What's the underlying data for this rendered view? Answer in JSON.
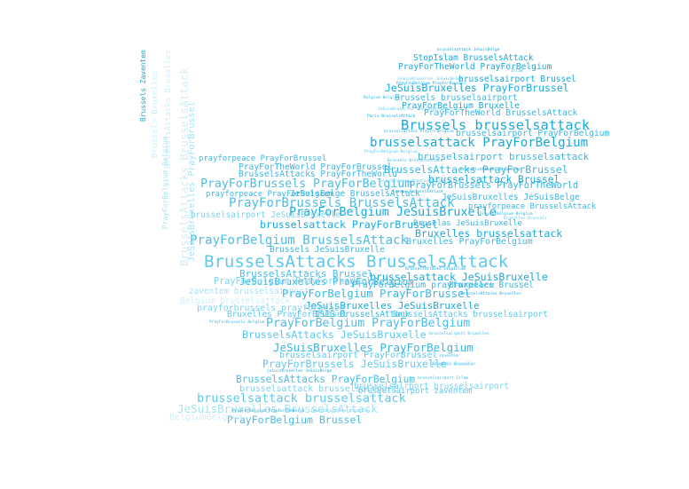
{
  "words": [
    {
      "text": "BrusselsAttacks BrusselsAttack",
      "weight": 1.0,
      "color": "#5bc8ee"
    },
    {
      "text": "Brussels brusselsattack",
      "weight": 0.72,
      "color": "#1aa9da"
    },
    {
      "text": "brusselsattack PrayForBelgium",
      "weight": 0.62,
      "color": "#1aa9da"
    },
    {
      "text": "PrayForBrussels BrusselsAttack",
      "weight": 0.62,
      "color": "#4dbde6"
    },
    {
      "text": "PrayForBelgium BrusselsAttack",
      "weight": 0.62,
      "color": "#4dbde6"
    },
    {
      "text": "PrayForBelgium JeSuisBruxelle",
      "weight": 0.57,
      "color": "#1aa9da"
    },
    {
      "text": "PrayForBrussels PrayForBelgium",
      "weight": 0.55,
      "color": "#4dbde6"
    },
    {
      "text": "brusselsattack brusselsattack",
      "weight": 0.58,
      "color": "#5bc8ee"
    },
    {
      "text": "PrayForBelgium PrayForBelgium",
      "weight": 0.55,
      "color": "#4dbde6"
    },
    {
      "text": "JeSuisBruxelles PrayForBelgium",
      "weight": 0.5,
      "color": "#3bb6e2"
    },
    {
      "text": "JeSuisBruxelles BrusselsAttack",
      "weight": 0.5,
      "color": "#a8e2f5"
    },
    {
      "text": "PrayForBelgium PrayForBrussel",
      "weight": 0.48,
      "color": "#3bb6e2"
    },
    {
      "text": "JeSuisBruxelles PrayForBrussel",
      "weight": 0.42,
      "color": "#1aa9da"
    },
    {
      "text": "BrusselsAttacks PrayForBrussel",
      "weight": 0.42,
      "color": "#3bb6e2"
    },
    {
      "text": "Bruxelles brusselsattack",
      "weight": 0.42,
      "color": "#1aa9da"
    },
    {
      "text": "brusselsattack PrayForBrussel",
      "weight": 0.42,
      "color": "#1aa9da"
    },
    {
      "text": "brusselsattack JeSuisBruxelle",
      "weight": 0.42,
      "color": "#1aa9da"
    },
    {
      "text": "BrusselsAttacks JeSuisBruxelle",
      "weight": 0.42,
      "color": "#5bc8ee"
    },
    {
      "text": "PrayForBrussels JeSuisBruxelle",
      "weight": 0.42,
      "color": "#5bc8ee"
    },
    {
      "text": "BrusselsAttacks PrayForBelgium",
      "weight": 0.4,
      "color": "#4dbde6"
    },
    {
      "text": "PrayForBelgium Brussel",
      "weight": 0.42,
      "color": "#4dbde6"
    },
    {
      "text": "BrusselsAttacks Brussel",
      "weight": 0.38,
      "color": "#4dbde6"
    },
    {
      "text": "brusselsattack Brussel",
      "weight": 0.4,
      "color": "#1aa9da"
    },
    {
      "text": "JeSuisBruxelles JeSuisBruxelle",
      "weight": 0.38,
      "color": "#1aa9da"
    },
    {
      "text": "JeSuisBruxelles PrayForBelgium",
      "weight": 0.38,
      "color": "#3bb6e2"
    },
    {
      "text": "brusselsairport brusselsattack",
      "weight": 0.36,
      "color": "#3bb6e2"
    },
    {
      "text": "PrayForBrussels PrayForTheWorld",
      "weight": 0.32,
      "color": "#3bb6e2"
    },
    {
      "text": "PrayForBelgium PrayForTheWorld",
      "weight": 0.32,
      "color": "#7dd3f0"
    },
    {
      "text": "Bruxelles PrayForBelgium",
      "weight": 0.3,
      "color": "#3bb6e2"
    },
    {
      "text": "brusselsairport PrayForBrussel",
      "weight": 0.3,
      "color": "#5bc8ee"
    },
    {
      "text": "brusselsattack brusselsairport",
      "weight": 0.3,
      "color": "#7dd3f0"
    },
    {
      "text": "PrayForBelgium prayforpeace",
      "weight": 0.3,
      "color": "#3bb6e2"
    },
    {
      "text": "prayforbrussels prayforpeace",
      "weight": 0.3,
      "color": "#7dd3f0"
    },
    {
      "text": "Brussels brusselsairport",
      "weight": 0.28,
      "color": "#3bb6e2"
    },
    {
      "text": "brusselsairport Brussel",
      "weight": 0.28,
      "color": "#1aa9da"
    },
    {
      "text": "PrayForTheWorld PrayForBelgium",
      "weight": 0.28,
      "color": "#1aa9da"
    },
    {
      "text": "PrayForTheWorld PrayForBrussel",
      "weight": 0.28,
      "color": "#3bb6e2"
    },
    {
      "text": "BrusselsAttacks PrayForTheWorld",
      "weight": 0.28,
      "color": "#3bb6e2"
    },
    {
      "text": "PrayForTheWorld BrusselsAttack",
      "weight": 0.28,
      "color": "#3bb6e2"
    },
    {
      "text": "PrayForBelgium Bruxelle",
      "weight": 0.28,
      "color": "#1aa9da"
    },
    {
      "text": "brusselsairport PrayForBelgium",
      "weight": 0.28,
      "color": "#3bb6e2"
    },
    {
      "text": "JeSuisBruxelles JeSuisBelge",
      "weight": 0.28,
      "color": "#3bb6e2"
    },
    {
      "text": "StopIslam BrusselsAttack",
      "weight": 0.26,
      "color": "#1aa9da"
    },
    {
      "text": "JeSuisBelge BrusselsAttack",
      "weight": 0.26,
      "color": "#3bb6e2"
    },
    {
      "text": "Bruxelles PrayForBrussel",
      "weight": 0.26,
      "color": "#5bc8ee"
    },
    {
      "text": "ISIS BrusselsAttack",
      "weight": 0.26,
      "color": "#3bb6e2"
    },
    {
      "text": "Bruxelles Brussel",
      "weight": 0.26,
      "color": "#3bb6e2"
    },
    {
      "text": "BrusselsAttacks brusselsairport",
      "weight": 0.26,
      "color": "#5bc8ee"
    },
    {
      "text": "brusselsairport JeSuisBruxelle",
      "weight": 0.26,
      "color": "#7dd3f0"
    },
    {
      "text": "brusselsairport brusselsairport",
      "weight": 0.26,
      "color": "#7dd3f0"
    },
    {
      "text": "zaventem brusselsairport",
      "weight": 0.26,
      "color": "#a8e2f5"
    },
    {
      "text": "Belgium brusselsattack",
      "weight": 0.26,
      "color": "#cfeffa"
    },
    {
      "text": "Brussels JeSuisBruxelle",
      "weight": 0.26,
      "color": "#3bb6e2"
    },
    {
      "text": "brusselsairport zaventem",
      "weight": 0.22,
      "color": "#5bc8ee"
    },
    {
      "text": "prayforpeace BrusselsAttack",
      "weight": 0.22,
      "color": "#3bb6e2"
    },
    {
      "text": "prayforpeace PrayForBelgium",
      "weight": 0.22,
      "color": "#3bb6e2"
    },
    {
      "text": "prayforpeace PrayForBrussel",
      "weight": 0.22,
      "color": "#3bb6e2"
    },
    {
      "text": "Bruselas JeSuisBruxelle",
      "weight": 0.22,
      "color": "#3bb6e2"
    },
    {
      "text": "BelgiumBelgium",
      "weight": 0.3,
      "color": "#cfeffa"
    }
  ],
  "tiny_words": [
    "brusselsattack JeSuisBelge",
    "Islam",
    "JeSuisBruxelles JeSuisBelge",
    "PrayForBelgium PrayForBrussel",
    "Belgium Belgium",
    "JeSuisBruxelles PrayForBelgium",
    "Paris BrusselsAttack",
    "brusselsattack PrayForBelgium",
    "PrayForBelgium Belgium",
    "BrusselsAttacks Bruxelles",
    "Brussels BrusselsAttack",
    "prayforpeace PrayForBelgium",
    "Europe BrusselsAttack",
    "PrayForBelgium Belgium",
    "Bruxelles Brussels",
    "BrusselsAttacks StopIslam",
    "brusselsairport Bruxelles",
    "Brussels Bruxelles",
    "BrusselsAttacks Bruxelles",
    "zaventem",
    "Brussels Brussels",
    "jesuisbruxelles JeSuisBelge",
    "brusselsairport Islam",
    "JeSuisBruxelles Bruxelles",
    "PrayForBelgium PrayForTheWorld",
    "PrayForBrussels Belgium"
  ],
  "vertical_words": [
    {
      "text": "BrusselsAttacks BrusselsAttack",
      "weight": 0.62,
      "color": "#cfeffa"
    },
    {
      "text": "JeSuisBruxelles PrayForBrussel",
      "weight": 0.38,
      "color": "#a8e2f5"
    },
    {
      "text": "Brussels Bruxelles",
      "weight": 0.3,
      "color": "#cfeffa"
    },
    {
      "text": "BrusselsAttacks Bruxelles",
      "weight": 0.28,
      "color": "#cfeffa"
    },
    {
      "text": "Brussels Zaventem",
      "weight": 0.18,
      "color": "#1aa9da"
    },
    {
      "text": "PrayForBelgium Belgium",
      "weight": 0.18,
      "color": "#a8e2f5"
    }
  ]
}
